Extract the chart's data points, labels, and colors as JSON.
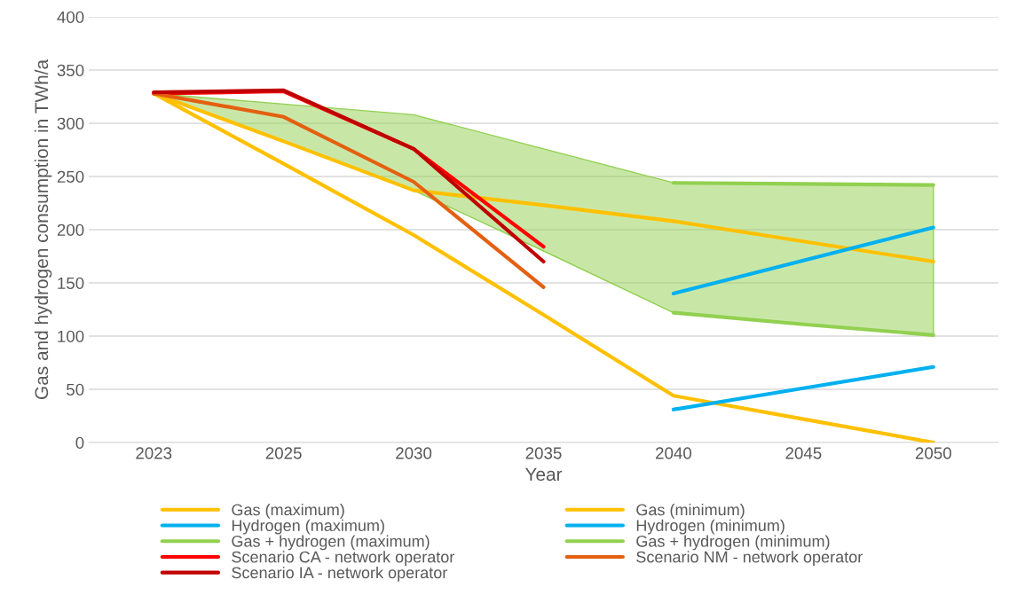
{
  "chart_data": {
    "type": "line",
    "xlabel": "Year",
    "ylabel": "Gas and hydrogen consumption in TWh/a",
    "categories": [
      "2023",
      "2025",
      "2030",
      "2035",
      "2040",
      "2045",
      "2050"
    ],
    "ylim": [
      0,
      400
    ],
    "yticks": [
      0,
      50,
      100,
      150,
      200,
      250,
      300,
      350,
      400
    ],
    "grid": "y",
    "legend": "bottom",
    "marker": "none",
    "line_style": "solid",
    "series": [
      {
        "name": "Gas (maximum)",
        "color": "#ffc000",
        "values": [
          328,
          283,
          237,
          223,
          208,
          189,
          170
        ]
      },
      {
        "name": "Gas (minimum)",
        "color": "#ffc000",
        "values": [
          328,
          262,
          195,
          120,
          44,
          22,
          0
        ]
      },
      {
        "name": "Hydrogen (maximum)",
        "color": "#00b0f0",
        "values": [
          null,
          null,
          null,
          null,
          140,
          171,
          202
        ]
      },
      {
        "name": "Hydrogen (minimum)",
        "color": "#00b0f0",
        "values": [
          null,
          null,
          null,
          null,
          31,
          51,
          71
        ]
      },
      {
        "name": "Gas + hydrogen (maximum)",
        "color": "#92d050",
        "values": [
          null,
          null,
          null,
          null,
          244,
          243,
          242
        ],
        "lower": [
          328,
          283,
          237,
          180,
          122,
          111,
          101
        ],
        "upper": [
          328,
          318,
          308,
          276,
          244,
          243,
          242
        ]
      },
      {
        "name": "Gas + hydrogen (minimum)",
        "color": "#92d050",
        "values": [
          null,
          null,
          null,
          null,
          122,
          111,
          101
        ]
      },
      {
        "name": "Scenario CA - network operator",
        "color": "#ff0000",
        "values": [
          328,
          330,
          276,
          184,
          null,
          null,
          null
        ]
      },
      {
        "name": "Scenario NM - network operator",
        "color": "#e46010",
        "values": [
          328,
          306,
          245,
          146,
          null,
          null,
          null
        ]
      },
      {
        "name": "Scenario IA - network operator",
        "color": "#c00000",
        "values": [
          329,
          331,
          276,
          170,
          null,
          null,
          null
        ]
      }
    ]
  }
}
